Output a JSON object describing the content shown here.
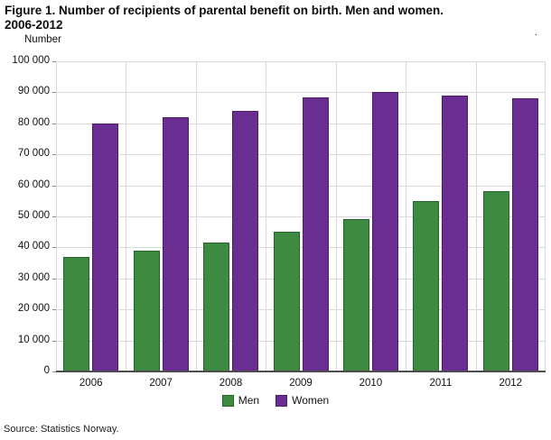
{
  "title": {
    "line1": "Figure 1.  Number of recipients of parental benefit on birth. Men and women.",
    "line2": "2006-2012"
  },
  "y_axis_unit": "Number",
  "stray_mark": ".",
  "source": "Source: Statistics Norway.",
  "colors": {
    "men": "#3f8a43",
    "men_border": "#27642c",
    "women": "#6a2d91",
    "women_border": "#4a1f66",
    "gridline": "#d8d8d8",
    "axis": "#4d4d4d"
  },
  "chart_data": {
    "type": "bar",
    "title": "Figure 1. Number of recipients of parental benefit on birth. Men and women. 2006-2012",
    "categories": [
      "2006",
      "2007",
      "2008",
      "2009",
      "2010",
      "2011",
      "2012"
    ],
    "series": [
      {
        "name": "Men",
        "color": "#3f8a43",
        "border": "#27642c",
        "values": [
          37000,
          39000,
          41500,
          45000,
          49000,
          55000,
          58000
        ]
      },
      {
        "name": "Women",
        "color": "#6a2d91",
        "border": "#4a1f66",
        "values": [
          80000,
          82000,
          84000,
          88500,
          90000,
          89000,
          88000
        ]
      }
    ],
    "xlabel": "",
    "ylabel": "Number",
    "ylim": [
      0,
      100000
    ],
    "ytick_step": 10000,
    "grid": true,
    "legend_position": "bottom"
  }
}
